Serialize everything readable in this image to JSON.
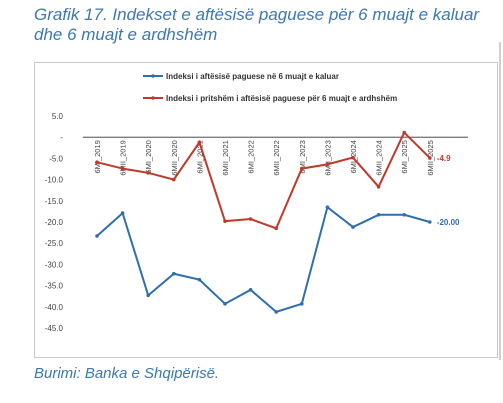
{
  "header": {
    "title_line1": "Grafik 17. Indekset e aftësisë paguese për 6 muajt e kaluar",
    "title_line2": "dhe 6 muajt e ardhshëm"
  },
  "footer": {
    "source": "Burimi: Banka e Shqipërisë."
  },
  "chart_data": {
    "type": "line",
    "categories": [
      "6MI_2019",
      "6MII_2019",
      "6MI_2020",
      "6MII_2020",
      "6MI_2021",
      "6MII_2021",
      "6MI_2022",
      "6MII_2022",
      "6MI_2023",
      "6MII_2023",
      "6MI_2024",
      "6MII_2024",
      "6MI_2025",
      "6MII_2025"
    ],
    "series": [
      {
        "name": "Indeksi i aftësisë paguese në 6 muajt e kaluar",
        "color": "#2f6fad",
        "values": [
          -23.3,
          -17.9,
          -37.3,
          -32.2,
          -33.6,
          -39.3,
          -36.0,
          -41.2,
          -39.3,
          -16.5,
          -21.2,
          -18.3,
          -18.3,
          -20.0
        ],
        "end_label": "-20.00"
      },
      {
        "name": "Indeksi i pritshëm i aftësisë paguese për 6 muajt e ardhshëm",
        "color": "#c0392b",
        "values": [
          -5.9,
          -7.4,
          -8.4,
          -10.0,
          -1.2,
          -19.8,
          -19.3,
          -21.5,
          -7.4,
          -6.4,
          -4.8,
          -11.7,
          1.1,
          -4.9
        ],
        "end_label": "-4.9"
      }
    ],
    "ylim": [
      -45,
      5
    ],
    "yticks": [
      "5.0",
      "-",
      "-5.0",
      "-10.0",
      "-15.0",
      "-20.0",
      "-25.0",
      "-30.0",
      "-35.0",
      "-40.0",
      "-45.0"
    ],
    "legend_position": "top",
    "grid": false
  }
}
